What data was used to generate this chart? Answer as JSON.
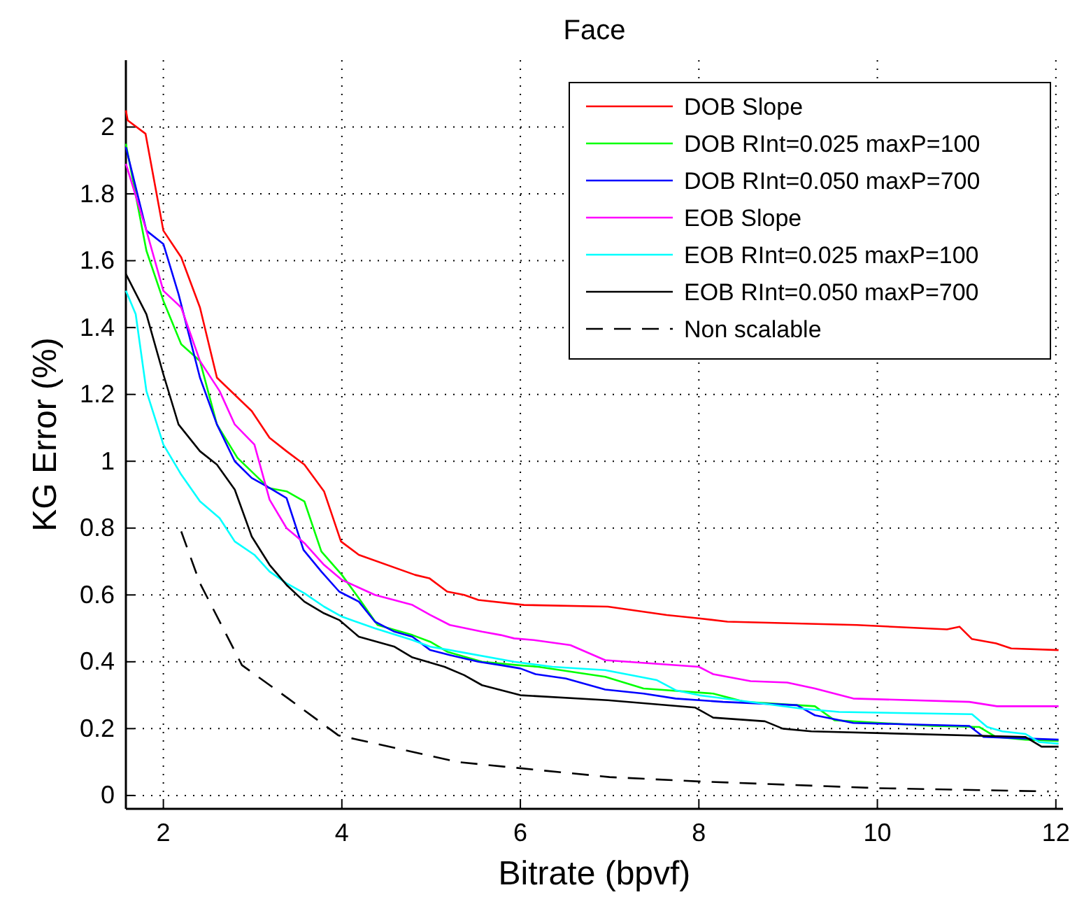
{
  "chart_data": {
    "type": "line",
    "title": "Face",
    "xlabel": "Bitrate (bpvf)",
    "ylabel": "KG Error (%)",
    "xlim": [
      1.58,
      12.08
    ],
    "ylim": [
      -0.04,
      2.2
    ],
    "xticks": [
      2,
      4,
      6,
      8,
      10,
      12
    ],
    "yticks": [
      0,
      0.2,
      0.4,
      0.6,
      0.8,
      1,
      1.2,
      1.4,
      1.6,
      1.8,
      2
    ],
    "grid": true,
    "legend": "top right",
    "series": [
      {
        "name": "DOB Slope",
        "color": "#ff0000",
        "x": [
          1.58,
          1.6,
          1.8,
          2.0,
          2.2,
          2.41,
          2.6,
          2.99,
          3.19,
          3.38,
          3.58,
          3.8,
          3.99,
          4.19,
          4.82,
          4.98,
          5.18,
          5.37,
          5.53,
          6.04,
          6.98,
          7.64,
          8.0,
          8.32,
          9.77,
          10.78,
          10.92,
          11.06,
          11.33,
          11.5,
          12.03
        ],
        "values": [
          2.05,
          2.02,
          1.98,
          1.69,
          1.61,
          1.46,
          1.25,
          1.15,
          1.07,
          1.03,
          0.99,
          0.91,
          0.76,
          0.72,
          0.66,
          0.65,
          0.61,
          0.6,
          0.585,
          0.57,
          0.565,
          0.54,
          0.53,
          0.52,
          0.51,
          0.497,
          0.505,
          0.468,
          0.455,
          0.44,
          0.435
        ]
      },
      {
        "name": "DOB RInt=0.025 maxP=100",
        "color": "#00ff00",
        "x": [
          1.58,
          1.81,
          2.0,
          2.2,
          2.41,
          2.6,
          2.83,
          3.18,
          3.38,
          3.58,
          3.77,
          4.0,
          4.19,
          4.4,
          4.79,
          4.99,
          5.18,
          5.57,
          5.97,
          6.2,
          6.95,
          7.38,
          8.16,
          8.52,
          9.3,
          9.52,
          10.62,
          11.14,
          11.33,
          11.66,
          12.03
        ],
        "values": [
          1.95,
          1.63,
          1.48,
          1.35,
          1.3,
          1.11,
          1.01,
          0.92,
          0.91,
          0.88,
          0.73,
          0.66,
          0.59,
          0.51,
          0.48,
          0.46,
          0.43,
          0.4,
          0.39,
          0.385,
          0.355,
          0.32,
          0.305,
          0.28,
          0.267,
          0.225,
          0.208,
          0.205,
          0.175,
          0.167,
          0.163
        ]
      },
      {
        "name": "DOB RInt=0.050 maxP=700",
        "color": "#0000ff",
        "x": [
          1.58,
          1.81,
          2.0,
          2.17,
          2.41,
          2.6,
          2.8,
          2.99,
          3.19,
          3.38,
          3.57,
          3.77,
          3.97,
          4.19,
          4.37,
          4.59,
          4.79,
          4.99,
          5.21,
          5.53,
          5.78,
          6.0,
          6.17,
          6.51,
          6.95,
          7.38,
          7.74,
          8.27,
          9.1,
          9.3,
          9.73,
          11.03,
          11.19,
          12.03
        ],
        "values": [
          1.94,
          1.69,
          1.65,
          1.5,
          1.25,
          1.11,
          1.0,
          0.95,
          0.92,
          0.89,
          0.735,
          0.67,
          0.61,
          0.58,
          0.52,
          0.49,
          0.475,
          0.435,
          0.42,
          0.4,
          0.39,
          0.38,
          0.363,
          0.35,
          0.317,
          0.305,
          0.29,
          0.28,
          0.27,
          0.24,
          0.217,
          0.208,
          0.175,
          0.167
        ]
      },
      {
        "name": "EOB Slope",
        "color": "#ff00ff",
        "x": [
          1.58,
          1.81,
          2.0,
          2.2,
          2.41,
          2.63,
          2.8,
          3.02,
          3.19,
          3.38,
          3.58,
          3.8,
          4.0,
          4.37,
          4.79,
          4.99,
          5.21,
          5.57,
          5.78,
          5.93,
          6.15,
          6.56,
          6.95,
          8.0,
          8.16,
          8.58,
          8.99,
          9.3,
          9.73,
          11.03,
          11.34,
          12.03
        ],
        "values": [
          1.89,
          1.69,
          1.51,
          1.46,
          1.3,
          1.21,
          1.11,
          1.05,
          0.885,
          0.8,
          0.755,
          0.69,
          0.645,
          0.6,
          0.57,
          0.54,
          0.51,
          0.49,
          0.48,
          0.47,
          0.465,
          0.45,
          0.405,
          0.385,
          0.363,
          0.342,
          0.338,
          0.32,
          0.29,
          0.28,
          0.267,
          0.267
        ]
      },
      {
        "name": "EOB RInt=0.025 maxP=100",
        "color": "#00ffff",
        "x": [
          1.58,
          1.69,
          1.81,
          2.0,
          2.2,
          2.41,
          2.63,
          2.8,
          3.02,
          3.19,
          3.38,
          3.58,
          3.8,
          4.0,
          4.37,
          4.79,
          4.99,
          5.21,
          5.93,
          6.36,
          6.95,
          7.53,
          7.74,
          8.0,
          9.15,
          9.57,
          11.06,
          11.23,
          11.4,
          11.66,
          11.81,
          12.03
        ],
        "values": [
          1.51,
          1.44,
          1.21,
          1.05,
          0.96,
          0.88,
          0.83,
          0.76,
          0.72,
          0.67,
          0.635,
          0.605,
          0.565,
          0.535,
          0.5,
          0.465,
          0.445,
          0.435,
          0.4,
          0.385,
          0.375,
          0.345,
          0.315,
          0.3,
          0.26,
          0.25,
          0.243,
          0.205,
          0.192,
          0.184,
          0.16,
          0.155
        ]
      },
      {
        "name": "EOB RInt=0.050 maxP=700",
        "color": "#000000",
        "x": [
          1.58,
          1.81,
          2.0,
          2.17,
          2.41,
          2.6,
          2.8,
          2.99,
          3.19,
          3.38,
          3.58,
          3.8,
          3.97,
          4.19,
          4.59,
          4.79,
          5.15,
          5.37,
          5.57,
          6.0,
          6.98,
          7.96,
          8.16,
          8.74,
          8.94,
          9.26,
          11.66,
          11.84,
          12.03
        ],
        "values": [
          1.56,
          1.44,
          1.26,
          1.11,
          1.03,
          0.99,
          0.915,
          0.775,
          0.69,
          0.63,
          0.58,
          0.545,
          0.525,
          0.475,
          0.445,
          0.413,
          0.385,
          0.36,
          0.33,
          0.3,
          0.285,
          0.263,
          0.233,
          0.222,
          0.2,
          0.192,
          0.175,
          0.146,
          0.146
        ]
      },
      {
        "name": "Non scalable",
        "color": "#000000",
        "line_style": "dashed",
        "x": [
          2.2,
          2.41,
          2.67,
          2.88,
          3.4,
          3.96,
          5.3,
          7.0,
          8.0,
          10.0,
          11.92
        ],
        "values": [
          0.79,
          0.635,
          0.5,
          0.39,
          0.29,
          0.18,
          0.1,
          0.055,
          0.042,
          0.022,
          0.012
        ]
      }
    ]
  }
}
